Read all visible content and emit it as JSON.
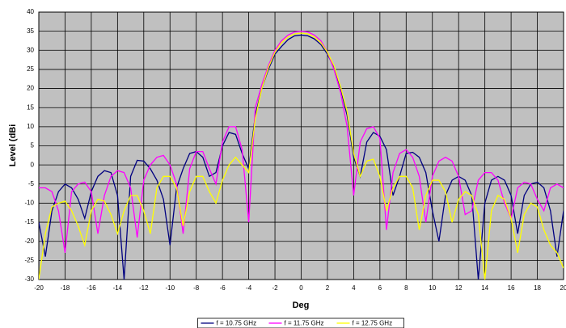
{
  "chart_data": {
    "type": "line",
    "x_label": "Deg",
    "y_label": "Level (dBi",
    "x": [
      -20,
      -19.5,
      -19,
      -18.5,
      -18,
      -17.5,
      -17,
      -16.5,
      -16,
      -15.5,
      -15,
      -14.5,
      -14,
      -13.5,
      -13,
      -12.5,
      -12,
      -11.5,
      -11,
      -10.5,
      -10,
      -9.5,
      -9,
      -8.5,
      -8,
      -7.5,
      -7,
      -6.5,
      -6,
      -5.5,
      -5,
      -4.5,
      -4,
      -3.5,
      -3,
      -2.5,
      -2,
      -1.5,
      -1,
      -0.5,
      0,
      0.5,
      1,
      1.5,
      2,
      2.5,
      3,
      3.5,
      4,
      4.5,
      5,
      5.5,
      6,
      6.5,
      7,
      7.5,
      8,
      8.5,
      9,
      9.5,
      10,
      10.5,
      11,
      11.5,
      12,
      12.5,
      13,
      13.5,
      14,
      14.5,
      15,
      15.5,
      16,
      16.5,
      17,
      17.5,
      18,
      18.5,
      19,
      19.5,
      20
    ],
    "series": [
      {
        "name": "f = 10.75 GHz",
        "color": "#000080",
        "values": [
          -15,
          -24,
          -12,
          -7,
          -5,
          -6,
          -9,
          -14,
          -7,
          -3,
          -1.5,
          -2,
          -8,
          -30,
          -3,
          1.2,
          1,
          -1,
          -4,
          -9,
          -21,
          -6,
          -1,
          3,
          3.5,
          2,
          -3,
          -2,
          5,
          8.5,
          8,
          3,
          -1,
          13,
          20,
          25,
          29,
          31,
          32.8,
          33.8,
          34,
          33.8,
          33,
          31.5,
          29,
          25.5,
          20,
          13,
          2,
          -3,
          6,
          8.5,
          7.5,
          4,
          -8,
          -3,
          3,
          3.3,
          2,
          -2,
          -12,
          -20,
          -8,
          -4,
          -3,
          -4,
          -8,
          -30,
          -10,
          -4,
          -3,
          -4,
          -8,
          -18,
          -8,
          -5,
          -4.5,
          -6,
          -12,
          -24,
          -12
        ]
      },
      {
        "name": "f = 11.75 GHz",
        "color": "#ff00ff",
        "values": [
          -6,
          -6,
          -7,
          -12,
          -23,
          -7,
          -5,
          -4.5,
          -7,
          -18,
          -8,
          -3,
          -1.5,
          -2,
          -6,
          -19,
          -4,
          0,
          2,
          2.5,
          0,
          -5,
          -18,
          -1,
          3.5,
          3.5,
          -1,
          -5,
          6,
          10,
          10,
          4,
          -15,
          15,
          21,
          26,
          30,
          32.5,
          34,
          34.8,
          35,
          34.8,
          34,
          32.5,
          29.5,
          25,
          19,
          10,
          -8,
          6,
          9.5,
          10,
          7,
          -17,
          -2,
          3,
          4,
          2,
          -3,
          -15,
          -3,
          1,
          2,
          1,
          -3,
          -13,
          -12,
          -4,
          -2,
          -2,
          -4,
          -10,
          -14,
          -6,
          -4.5,
          -5,
          -9,
          -12,
          -6,
          -5,
          -6
        ]
      },
      {
        "name": "f = 12.75 GHz",
        "color": "#ffff00",
        "values": [
          -30,
          -18,
          -11,
          -10,
          -9.5,
          -12,
          -16,
          -21,
          -12,
          -9,
          -9.5,
          -13,
          -18,
          -12,
          -8,
          -8,
          -12,
          -18,
          -6,
          -3,
          -3,
          -6,
          -16,
          -7,
          -3,
          -3,
          -7,
          -10,
          -4,
          0,
          2,
          0,
          -2,
          12,
          20,
          25.5,
          29.5,
          32,
          33.5,
          34.3,
          34.5,
          34.3,
          33.5,
          32,
          29.5,
          26,
          20.5,
          14,
          3,
          -3,
          1,
          1.5,
          -3,
          -12,
          -6,
          -3,
          -3,
          -6,
          -17,
          -8,
          -4,
          -4,
          -7,
          -15,
          -9,
          -7,
          -8,
          -13,
          -30,
          -12,
          -8,
          -9,
          -14,
          -23,
          -13,
          -10,
          -11,
          -17,
          -21,
          -23,
          -27
        ]
      }
    ],
    "xlim": [
      -20,
      20
    ],
    "ylim": [
      -30,
      40
    ],
    "xticks": [
      -20,
      -18,
      -16,
      -14,
      -12,
      -10,
      -8,
      -6,
      -4,
      -2,
      0,
      2,
      4,
      6,
      8,
      10,
      12,
      14,
      16,
      18,
      20
    ],
    "yticks": [
      -30,
      -25,
      -20,
      -15,
      -10,
      -5,
      0,
      5,
      10,
      15,
      20,
      25,
      30,
      35,
      40
    ],
    "grid": true,
    "legend": "bottom",
    "plot_background": "#c0c0c0"
  }
}
